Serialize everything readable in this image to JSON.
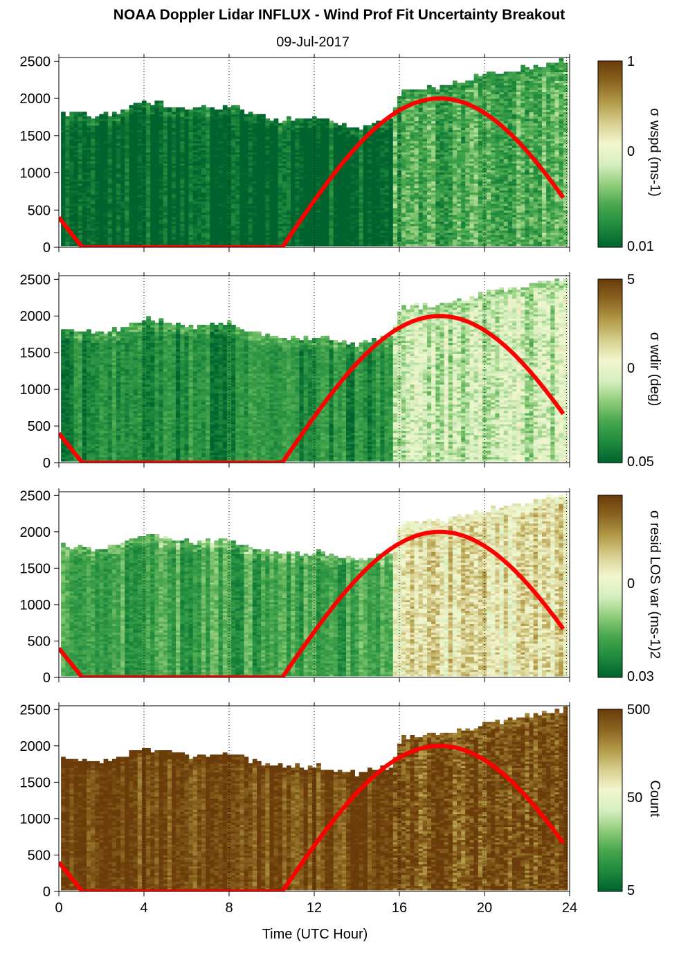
{
  "title": "NOAA Doppler Lidar INFLUX - Wind Prof Fit Uncertainty Breakout",
  "subtitle": "09-Jul-2017",
  "xlabel": "Time (UTC Hour)",
  "colors": {
    "sun_curve": "#ff0000",
    "colormap": [
      "#00632e",
      "#1e8a3d",
      "#46a64e",
      "#8fcc7a",
      "#d6efc0",
      "#f3f6cf",
      "#d6cf8f",
      "#b39a48",
      "#8a6420",
      "#6b3c0a"
    ]
  },
  "chart_data": [
    {
      "type": "heatmap",
      "panel": "wspd",
      "colorbar_label": "σ wspd (ms-1)",
      "colorbar_ticks": [
        "1",
        "0",
        "0.01"
      ],
      "xlim": [
        0,
        24
      ],
      "ylim": [
        0,
        2550
      ],
      "xticks": [
        0,
        4,
        8,
        12,
        16,
        20,
        24
      ],
      "yticks": [
        0,
        500,
        1000,
        1500,
        2000,
        2500
      ],
      "x_gridlines": [
        4,
        8,
        12,
        16,
        20
      ],
      "x": [
        0,
        2,
        4,
        6,
        8,
        10,
        12,
        14,
        15.5,
        16,
        18,
        20,
        22,
        23.8
      ],
      "top_height": [
        1800,
        1750,
        1950,
        1850,
        1880,
        1700,
        1700,
        1600,
        1700,
        2100,
        2150,
        2300,
        2400,
        2500
      ],
      "level_green_regime": 0.02,
      "level_mixed_regime": 0.22,
      "sun_elevation_curve": {
        "x": [
          0,
          1.1,
          10.5,
          12,
          14,
          16,
          18,
          20,
          22,
          23.8
        ],
        "y": [
          400,
          0,
          0,
          550,
          1300,
          1850,
          2000,
          1800,
          1250,
          550
        ]
      }
    },
    {
      "type": "heatmap",
      "panel": "wdir",
      "colorbar_label": "σ wdir (deg)",
      "colorbar_ticks": [
        "5",
        "0",
        "0.05"
      ],
      "xlim": [
        0,
        24
      ],
      "ylim": [
        0,
        2550
      ],
      "xticks": [
        0,
        4,
        8,
        12,
        16,
        20,
        24
      ],
      "yticks": [
        0,
        500,
        1000,
        1500,
        2000,
        2500
      ],
      "x_gridlines": [
        4,
        8,
        12,
        16,
        20
      ],
      "x": [
        0,
        2,
        4,
        6,
        8,
        10,
        12,
        14,
        15.5,
        16,
        18,
        20,
        22,
        23.8
      ],
      "top_height": [
        1800,
        1750,
        1950,
        1850,
        1880,
        1700,
        1700,
        1600,
        1700,
        2100,
        2150,
        2300,
        2400,
        2500
      ],
      "level_green_regime": 0.12,
      "level_mixed_regime": 0.42,
      "sun_elevation_curve": {
        "x": [
          0,
          1.1,
          10.5,
          12,
          14,
          16,
          18,
          20,
          22,
          23.8
        ],
        "y": [
          400,
          0,
          0,
          550,
          1300,
          1850,
          2000,
          1800,
          1250,
          550
        ]
      }
    },
    {
      "type": "heatmap",
      "panel": "resid_los_var",
      "colorbar_label": "σ resid LOS var (ms-1)2",
      "colorbar_ticks": [
        "0",
        "0.03"
      ],
      "xlim": [
        0,
        24
      ],
      "ylim": [
        0,
        2550
      ],
      "xticks": [
        0,
        4,
        8,
        12,
        16,
        20,
        24
      ],
      "yticks": [
        0,
        500,
        1000,
        1500,
        2000,
        2500
      ],
      "x_gridlines": [
        4,
        8,
        12,
        16,
        20
      ],
      "x": [
        0,
        2,
        4,
        6,
        8,
        10,
        12,
        14,
        15.5,
        16,
        18,
        20,
        22,
        23.8
      ],
      "top_height": [
        1800,
        1750,
        1950,
        1850,
        1880,
        1700,
        1700,
        1600,
        1700,
        2100,
        2150,
        2300,
        2400,
        2500
      ],
      "level_green_regime": 0.2,
      "level_mixed_regime": 0.62,
      "sun_elevation_curve": {
        "x": [
          0,
          1.1,
          10.5,
          12,
          14,
          16,
          18,
          20,
          22,
          23.8
        ],
        "y": [
          400,
          0,
          0,
          550,
          1300,
          1850,
          2000,
          1800,
          1250,
          550
        ]
      }
    },
    {
      "type": "heatmap",
      "panel": "count",
      "colorbar_label": "Count",
      "colorbar_ticks": [
        "500",
        "50",
        "5"
      ],
      "xlim": [
        0,
        24
      ],
      "ylim": [
        0,
        2550
      ],
      "xticks": [
        0,
        4,
        8,
        12,
        16,
        20,
        24
      ],
      "yticks": [
        0,
        500,
        1000,
        1500,
        2000,
        2500
      ],
      "x_gridlines": [
        4,
        8,
        12,
        16,
        20
      ],
      "x": [
        0,
        2,
        4,
        6,
        8,
        10,
        12,
        14,
        15.5,
        16,
        18,
        20,
        22,
        23.8
      ],
      "top_height": [
        1800,
        1750,
        1950,
        1850,
        1880,
        1700,
        1700,
        1600,
        1700,
        2100,
        2150,
        2300,
        2400,
        2500
      ],
      "level_green_regime": 0.95,
      "level_mixed_regime": 0.95,
      "sun_elevation_curve": {
        "x": [
          0,
          1.1,
          10.5,
          12,
          14,
          16,
          18,
          20,
          22,
          23.8
        ],
        "y": [
          400,
          0,
          0,
          550,
          1300,
          1850,
          2000,
          1800,
          1250,
          550
        ]
      }
    }
  ]
}
